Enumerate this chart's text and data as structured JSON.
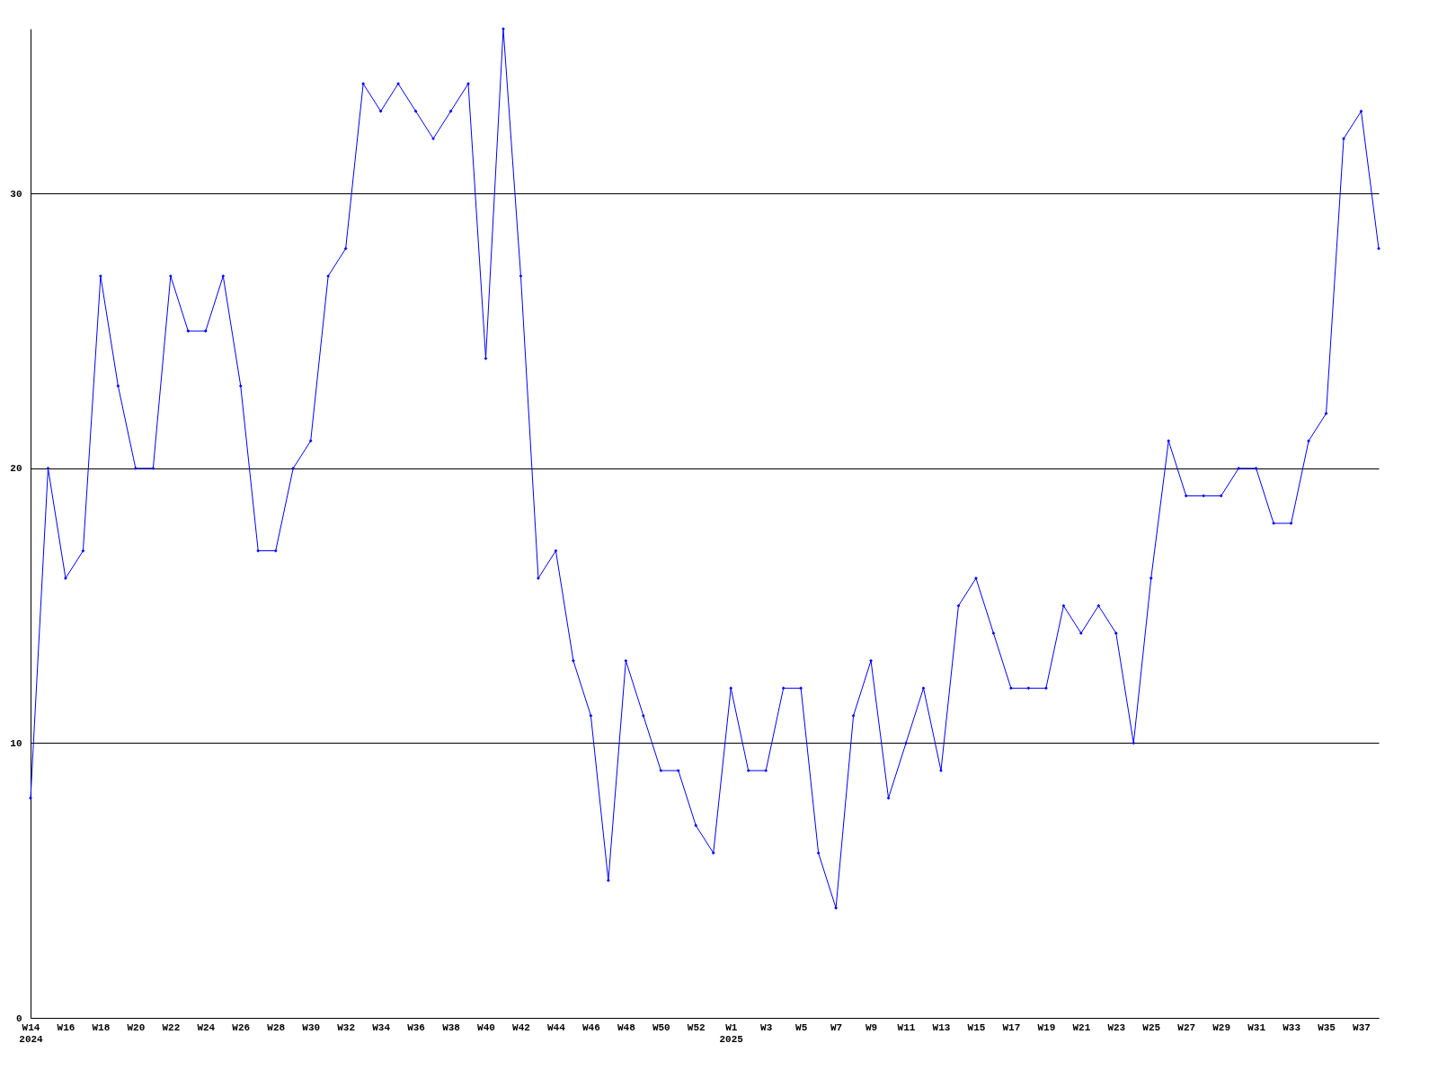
{
  "chart_data": {
    "type": "line",
    "categories": [
      "W14\n2024",
      null,
      "W16",
      null,
      "W18",
      null,
      "W20",
      null,
      "W22",
      null,
      "W24",
      null,
      "W26",
      null,
      "W28",
      null,
      "W30",
      null,
      "W32",
      null,
      "W34",
      null,
      "W36",
      null,
      "W38",
      null,
      "W40",
      null,
      "W42",
      null,
      "W44",
      null,
      "W46",
      null,
      "W48",
      null,
      "W50",
      null,
      "W52",
      null,
      "W1\n2025",
      null,
      "W3",
      null,
      "W5",
      null,
      "W7",
      null,
      "W9",
      null,
      "W11",
      null,
      "W13",
      null,
      "W15",
      null,
      "W17",
      null,
      "W19",
      null,
      "W21",
      null,
      "W23",
      null,
      "W25",
      null,
      "W27",
      null,
      "W29",
      null,
      "W31",
      null,
      "W33",
      null,
      "W35",
      null,
      "W37",
      null
    ],
    "series": [
      {
        "color": "#0000ff",
        "values": [
          8,
          20,
          16,
          17,
          27,
          23,
          20,
          20,
          27,
          25,
          25,
          27,
          23,
          17,
          17,
          20,
          21,
          27,
          28,
          34,
          33,
          34,
          33,
          32,
          33,
          34,
          24,
          36,
          27,
          16,
          17,
          13,
          11,
          5,
          13,
          11,
          9,
          9,
          7,
          6,
          12,
          9,
          9,
          12,
          12,
          6,
          4,
          11,
          13,
          8,
          10,
          12,
          9,
          15,
          16,
          14,
          12,
          12,
          12,
          15,
          14,
          15,
          14,
          10,
          16,
          21,
          19,
          19,
          19,
          20,
          20,
          18,
          18,
          21,
          22,
          32,
          33,
          28
        ]
      }
    ],
    "ylim": [
      0,
      36
    ],
    "yticks": [
      0,
      10,
      20,
      30
    ],
    "grid": "y",
    "marker": "diamond",
    "line_style": "solid"
  }
}
